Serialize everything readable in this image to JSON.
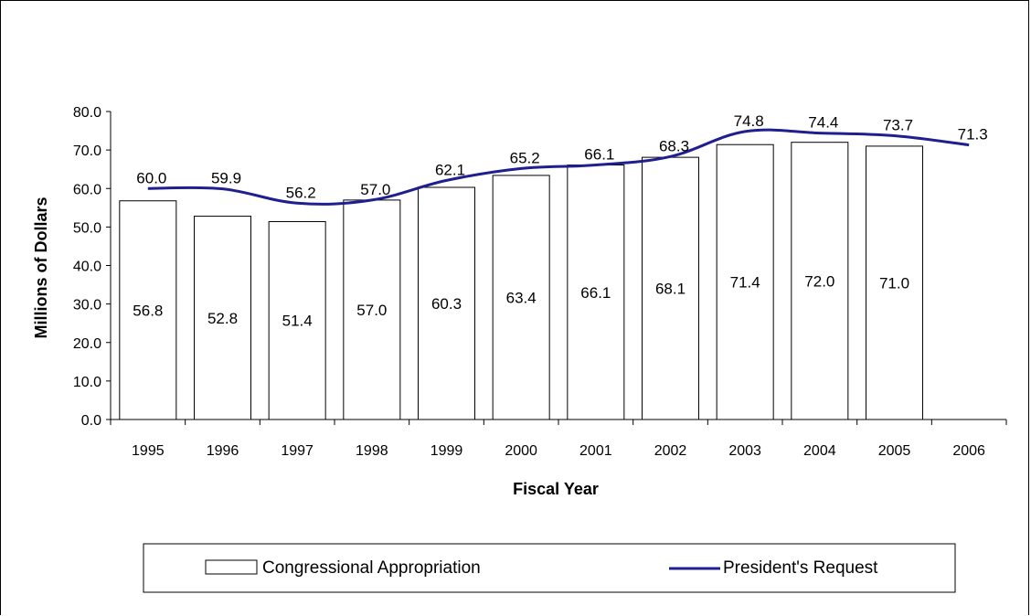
{
  "chart_data": {
    "type": "bar",
    "categories": [
      "1995",
      "1996",
      "1997",
      "1998",
      "1999",
      "2000",
      "2001",
      "2002",
      "2003",
      "2004",
      "2005",
      "2006"
    ],
    "title": "",
    "xlabel": "Fiscal Year",
    "ylabel": "Millions of Dollars",
    "ylim": [
      0,
      80
    ],
    "yticks": [
      "0.0",
      "10.0",
      "20.0",
      "30.0",
      "40.0",
      "50.0",
      "60.0",
      "70.0",
      "80.0"
    ],
    "grid": false,
    "legend_position": "bottom",
    "series": [
      {
        "name": "Congressional Appropriation",
        "type": "bar",
        "color": "#ffffff",
        "values": [
          56.8,
          52.8,
          51.4,
          57.0,
          60.3,
          63.4,
          66.1,
          68.1,
          71.4,
          72.0,
          71.0,
          null
        ],
        "labels": [
          "56.8",
          "52.8",
          "51.4",
          "57.0",
          "60.3",
          "63.4",
          "66.1",
          "68.1",
          "71.4",
          "72.0",
          "71.0",
          ""
        ]
      },
      {
        "name": "President's Request",
        "type": "line",
        "color": "#1f1f8f",
        "values": [
          60.0,
          59.9,
          56.2,
          57.0,
          62.1,
          65.2,
          66.1,
          68.3,
          74.8,
          74.4,
          73.7,
          71.3
        ],
        "labels": [
          "60.0",
          "59.9",
          "56.2",
          "57.0",
          "62.1",
          "65.2",
          "66.1",
          "68.3",
          "74.8",
          "74.4",
          "73.7",
          "71.3"
        ]
      }
    ]
  }
}
